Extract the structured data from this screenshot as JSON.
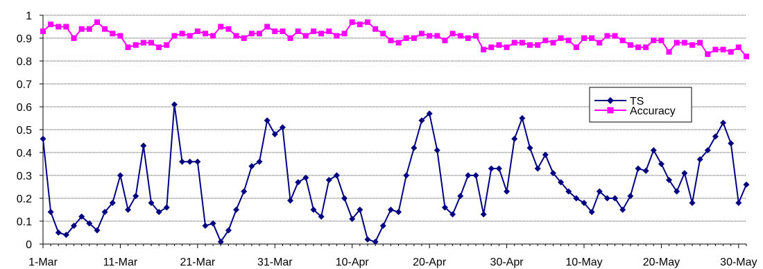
{
  "chart_data": {
    "type": "line",
    "title": "",
    "xlabel": "",
    "ylabel": "",
    "ylim": [
      0,
      1
    ],
    "y_ticks": [
      "0",
      "0.1",
      "0.2",
      "0.3",
      "0.4",
      "0.5",
      "0.6",
      "0.7",
      "0.8",
      "0.9",
      "1"
    ],
    "x_tick_labels": [
      "1-Mar",
      "11-Mar",
      "21-Mar",
      "31-Mar",
      "10-Apr",
      "20-Apr",
      "30-Apr",
      "10-May",
      "20-May",
      "30-May"
    ],
    "x_start": "1-Mar",
    "x_end": "31-May",
    "grid": "horizontal",
    "legend_position": "right",
    "series": [
      {
        "name": "TS",
        "color": "#000080",
        "marker": "diamond",
        "values": [
          0.46,
          0.14,
          0.05,
          0.04,
          0.08,
          0.12,
          0.09,
          0.06,
          0.14,
          0.18,
          0.3,
          0.15,
          0.21,
          0.43,
          0.18,
          0.14,
          0.16,
          0.61,
          0.36,
          0.36,
          0.36,
          0.08,
          0.09,
          0.01,
          0.06,
          0.15,
          0.23,
          0.34,
          0.36,
          0.54,
          0.48,
          0.51,
          0.19,
          0.27,
          0.29,
          0.15,
          0.12,
          0.28,
          0.3,
          0.2,
          0.11,
          0.15,
          0.02,
          0.01,
          0.08,
          0.15,
          0.14,
          0.3,
          0.42,
          0.54,
          0.57,
          0.41,
          0.16,
          0.13,
          0.21,
          0.3,
          0.3,
          0.13,
          0.33,
          0.33,
          0.23,
          0.46,
          0.55,
          0.42,
          0.33,
          0.39,
          0.31,
          0.27,
          0.23,
          0.2,
          0.18,
          0.14,
          0.23,
          0.2,
          0.2,
          0.15,
          0.21,
          0.33,
          0.32,
          0.41,
          0.35,
          0.28,
          0.23,
          0.31,
          0.18,
          0.37,
          0.41,
          0.47,
          0.53,
          0.44,
          0.18,
          0.26
        ]
      },
      {
        "name": "Accuracy",
        "color": "#FF00FF",
        "marker": "square",
        "values": [
          0.93,
          0.96,
          0.95,
          0.95,
          0.9,
          0.94,
          0.94,
          0.97,
          0.94,
          0.92,
          0.91,
          0.86,
          0.87,
          0.88,
          0.88,
          0.86,
          0.87,
          0.91,
          0.92,
          0.91,
          0.93,
          0.92,
          0.91,
          0.95,
          0.94,
          0.91,
          0.9,
          0.92,
          0.92,
          0.95,
          0.93,
          0.93,
          0.9,
          0.93,
          0.91,
          0.93,
          0.92,
          0.93,
          0.91,
          0.92,
          0.97,
          0.96,
          0.97,
          0.94,
          0.92,
          0.89,
          0.88,
          0.9,
          0.9,
          0.92,
          0.91,
          0.91,
          0.89,
          0.92,
          0.91,
          0.9,
          0.91,
          0.85,
          0.86,
          0.87,
          0.86,
          0.88,
          0.88,
          0.87,
          0.87,
          0.89,
          0.88,
          0.9,
          0.89,
          0.86,
          0.9,
          0.9,
          0.88,
          0.91,
          0.91,
          0.89,
          0.87,
          0.86,
          0.86,
          0.89,
          0.89,
          0.84,
          0.88,
          0.88,
          0.87,
          0.88,
          0.83,
          0.85,
          0.85,
          0.84,
          0.86,
          0.82
        ]
      }
    ]
  }
}
